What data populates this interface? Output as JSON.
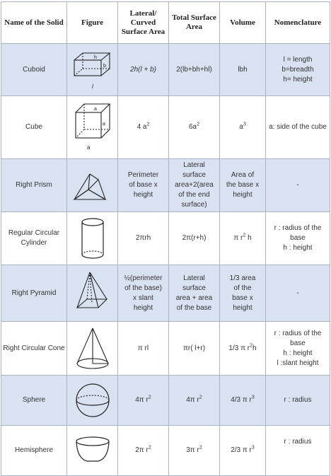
{
  "header": {
    "name": "Name of the Solid",
    "figure": "Figure",
    "lateral": "Lateral/ Curved Surface Area",
    "total": "Total Surface Area",
    "volume": "Volume",
    "nomenclature": "Nomenclature"
  },
  "rows": [
    {
      "name": "Cuboid",
      "figure_icon": "cuboid-icon",
      "figure_labels": {
        "h": "h",
        "b": "b",
        "l": "l"
      },
      "lateral": "2h(l + b)",
      "total": "2(lb+bh+hl)",
      "volume": "lbh",
      "nomenclature": [
        "l = length",
        "b=breadth",
        "h= height"
      ]
    },
    {
      "name": "Cube",
      "figure_icon": "cube-icon",
      "figure_labels": {
        "a1": "a",
        "a2": "a",
        "a3": "a"
      },
      "lateral": {
        "base": "4 a",
        "exp": "2"
      },
      "total": {
        "base": "6a",
        "exp": "2"
      },
      "volume": {
        "base": "a",
        "exp": "3"
      },
      "nomenclature": [
        "a: side of the cube"
      ]
    },
    {
      "name": "Right Prism",
      "figure_icon": "prism-icon",
      "lateral": [
        "Perimeter",
        "of base x",
        "height"
      ],
      "total": [
        "Lateral",
        "surface",
        "area+2(area",
        "of the end",
        "surface)"
      ],
      "volume": [
        "Area of",
        "the base x",
        "height"
      ],
      "nomenclature": [
        "-"
      ]
    },
    {
      "name": "Regular Circular Cylinder",
      "figure_icon": "cylinder-icon",
      "lateral": "2πrh",
      "total": "2π(r+h)",
      "volume": {
        "base": "π  r",
        "exp": "2",
        "tail": "h"
      },
      "nomenclature": [
        "r : radius of the base",
        "h : height"
      ]
    },
    {
      "name": "Right Pyramid",
      "figure_icon": "pyramid-icon",
      "lateral": [
        "½(perimeter",
        "of the base)",
        "x slant",
        "height"
      ],
      "total": [
        "Lateral",
        "surface",
        "area + area",
        "of the base"
      ],
      "volume": [
        "1/3 area",
        "of the",
        "base x",
        "height"
      ],
      "nomenclature": [
        "-"
      ]
    },
    {
      "name": "Right Circular Cone",
      "figure_icon": "cone-icon",
      "lateral": "π rl",
      "total": "πr( l+r)",
      "volume": {
        "base": "1/3 π r",
        "exp": "2",
        "tail": "h"
      },
      "nomenclature": [
        "r : radius of the base",
        "h : height",
        "l :slant height"
      ]
    },
    {
      "name": "Sphere",
      "figure_icon": "sphere-icon",
      "lateral": {
        "base": "4π r",
        "exp": "2"
      },
      "total": {
        "base": "4π r",
        "exp": "2"
      },
      "volume": {
        "base": "4/3 π r",
        "exp": "3"
      },
      "nomenclature": [
        "r : radius"
      ]
    },
    {
      "name": "Hemisphere",
      "figure_icon": "hemisphere-icon",
      "lateral": {
        "base": "2π r",
        "exp": "2"
      },
      "total": {
        "base": "3π r",
        "exp": "2"
      },
      "volume": {
        "base": "2/3 π r",
        "exp": "3"
      },
      "nomenclature": [
        "r : radius"
      ]
    }
  ],
  "colors": {
    "shade": "#d9e2f1",
    "border": "#a8b4c4"
  }
}
